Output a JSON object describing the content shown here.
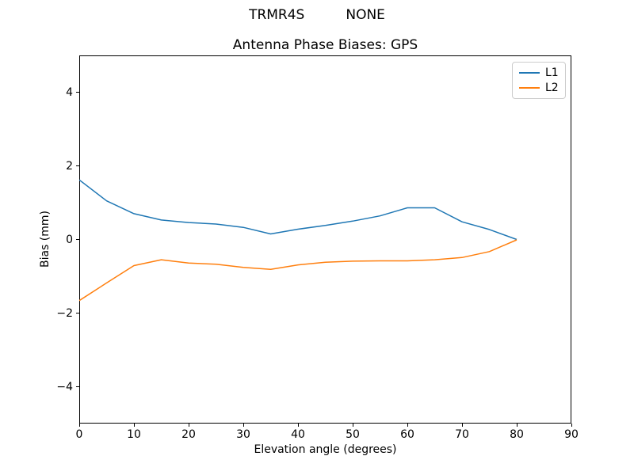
{
  "header": {
    "station": "TRMR4S",
    "model": "NONE"
  },
  "chart_data": {
    "type": "line",
    "title": "Antenna Phase Biases: GPS",
    "xlabel": "Elevation angle (degrees)",
    "ylabel": "Bias (mm)",
    "xlim": [
      0,
      90
    ],
    "ylim": [
      -5,
      5
    ],
    "xticks": [
      0,
      10,
      20,
      30,
      40,
      50,
      60,
      70,
      80,
      90
    ],
    "yticks": [
      -4,
      -2,
      0,
      2,
      4
    ],
    "grid": false,
    "legend_position": "upper right",
    "x": [
      0,
      5,
      10,
      15,
      20,
      25,
      30,
      35,
      40,
      45,
      50,
      55,
      60,
      65,
      70,
      75,
      80
    ],
    "series": [
      {
        "name": "L1",
        "color": "#1f77b4",
        "values": [
          1.62,
          1.05,
          0.7,
          0.53,
          0.46,
          0.42,
          0.33,
          0.15,
          0.28,
          0.38,
          0.5,
          0.64,
          0.86,
          0.86,
          0.48,
          0.27,
          0.0
        ]
      },
      {
        "name": "L2",
        "color": "#ff7f0e",
        "values": [
          -1.66,
          -1.18,
          -0.71,
          -0.55,
          -0.64,
          -0.67,
          -0.76,
          -0.81,
          -0.69,
          -0.62,
          -0.59,
          -0.58,
          -0.58,
          -0.55,
          -0.49,
          -0.33,
          -0.01
        ]
      }
    ]
  },
  "colors": {
    "spine": "#000000",
    "legend_border": "#cccccc",
    "background": "#ffffff"
  }
}
